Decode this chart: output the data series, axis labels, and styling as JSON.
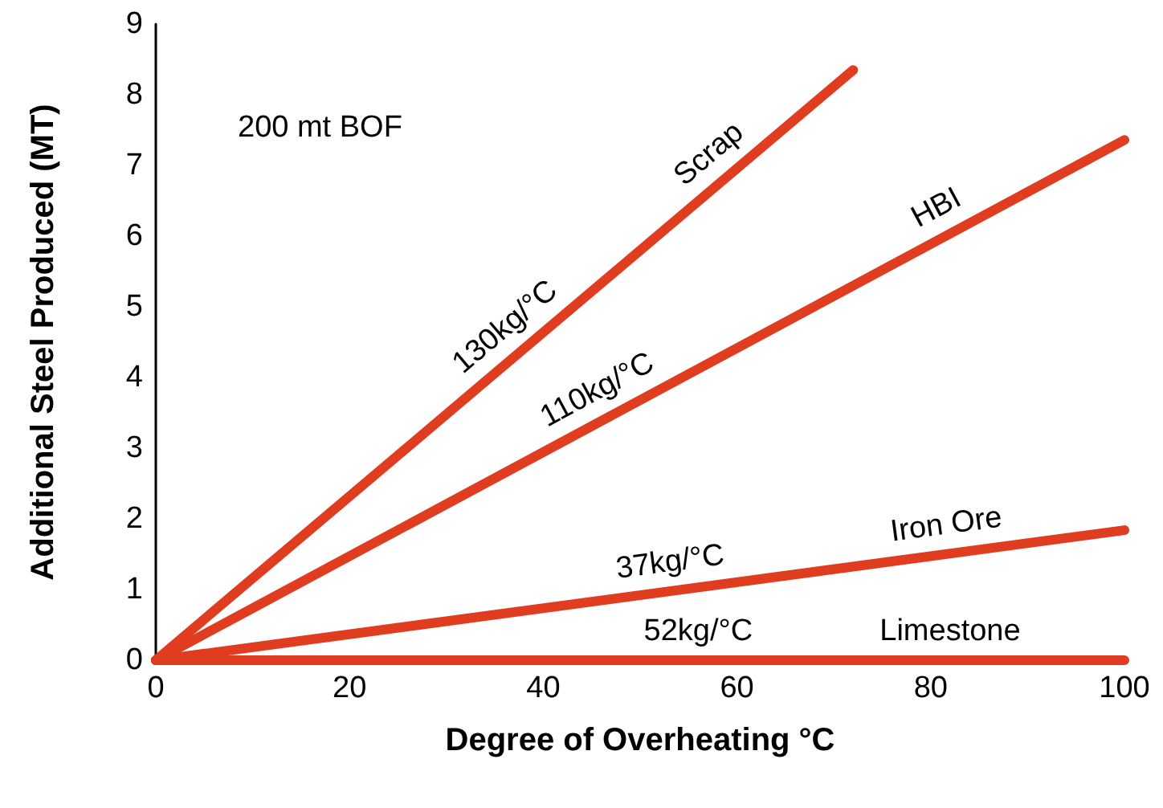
{
  "chart_data": {
    "type": "line",
    "xlabel": "Degree of Overheating °C",
    "ylabel": "Additional Steel Produced (MT)",
    "xlim": [
      0,
      100
    ],
    "xticks": [
      0,
      20,
      40,
      60,
      80,
      100
    ],
    "ylim": [
      0,
      9
    ],
    "yticks": [
      0,
      1,
      2,
      3,
      4,
      5,
      6,
      7,
      8,
      9
    ],
    "grid": false,
    "legend": false,
    "marker": "none",
    "line_style": "solid",
    "series": [
      {
        "name": "Scrap",
        "color": "#e03c1f",
        "x": [
          0,
          72
        ],
        "values": [
          0,
          8.35
        ]
      },
      {
        "name": "HBI",
        "color": "#e03c1f",
        "x": [
          0,
          100
        ],
        "values": [
          0,
          7.36
        ]
      },
      {
        "name": "Iron Ore",
        "color": "#e03c1f",
        "x": [
          0,
          100
        ],
        "values": [
          0,
          1.84
        ]
      },
      {
        "name": "Limestone",
        "color": "#e03c1f",
        "x": [
          0,
          100
        ],
        "values": [
          0,
          0
        ]
      }
    ],
    "annotations": [
      "200 mt BOF",
      {
        "text": "130kg/°C",
        "x": 38,
        "y": 4.4
      },
      {
        "text": "110kg/°C",
        "x": 47,
        "y": 3.46
      },
      {
        "text": "37kg/°C",
        "x": 53.5,
        "y": 0.98
      },
      {
        "text": "52kg/°C",
        "x": 56,
        "y": 0
      }
    ]
  }
}
